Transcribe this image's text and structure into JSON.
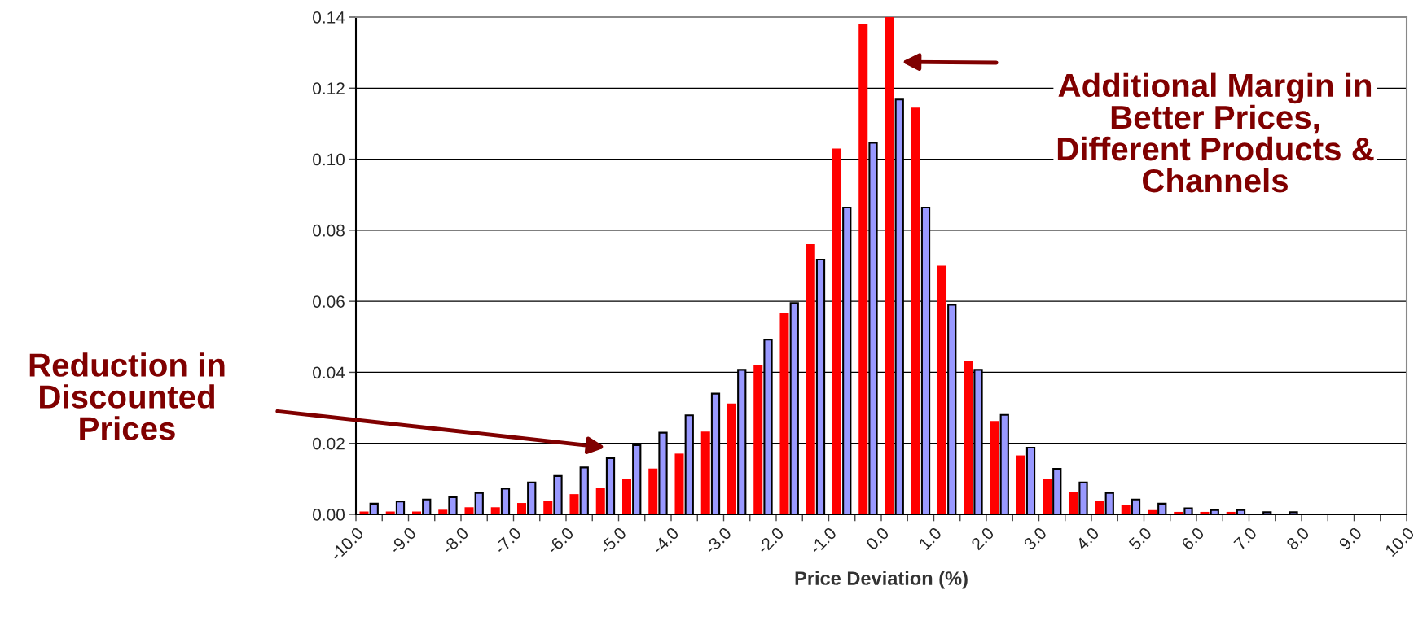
{
  "chart_data": {
    "type": "bar",
    "xlabel": "Price Deviation (%)",
    "x": [
      -9.75,
      -9.25,
      -8.75,
      -8.25,
      -7.75,
      -7.25,
      -6.75,
      -6.25,
      -5.75,
      -5.25,
      -4.75,
      -4.25,
      -3.75,
      -3.25,
      -2.75,
      -2.25,
      -1.75,
      -1.25,
      -0.75,
      -0.25,
      0.25,
      0.75,
      1.25,
      1.75,
      2.25,
      2.75,
      3.25,
      3.75,
      4.25,
      4.75,
      5.25,
      5.75,
      6.25,
      6.75,
      7.25,
      7.75
    ],
    "series": [
      {
        "color": "#ff0000",
        "values": [
          0.0008,
          0.0008,
          0.0008,
          0.0013,
          0.002,
          0.002,
          0.0032,
          0.0038,
          0.0057,
          0.0075,
          0.0099,
          0.0129,
          0.0171,
          0.0233,
          0.0312,
          0.0421,
          0.0568,
          0.0761,
          0.103,
          0.138,
          0.14,
          0.1145,
          0.07,
          0.0433,
          0.0263,
          0.0166,
          0.0099,
          0.0062,
          0.0037,
          0.0026,
          0.0012,
          0.0007,
          0.0007,
          0.0007,
          null,
          null
        ]
      },
      {
        "color": "#9999ff",
        "values": [
          0.003,
          0.0036,
          0.0042,
          0.0048,
          0.006,
          0.0072,
          0.009,
          0.0108,
          0.0132,
          0.0158,
          0.0195,
          0.023,
          0.0279,
          0.034,
          0.0407,
          0.0492,
          0.0595,
          0.0717,
          0.0864,
          0.1046,
          0.1168,
          0.0864,
          0.059,
          0.0407,
          0.028,
          0.0188,
          0.0128,
          0.009,
          0.006,
          0.0042,
          0.003,
          0.0017,
          0.0012,
          0.0012,
          0.0006,
          0.0006
        ]
      }
    ],
    "xlim": [
      -10,
      10
    ],
    "xticks": [
      {
        "value": -10,
        "label": "-10.0"
      },
      {
        "value": -9.5,
        "label": null
      },
      {
        "value": -9,
        "label": "-9.0"
      },
      {
        "value": -8.5,
        "label": null
      },
      {
        "value": -8,
        "label": "-8.0"
      },
      {
        "value": -7.5,
        "label": null
      },
      {
        "value": -7,
        "label": "-7.0"
      },
      {
        "value": -6.5,
        "label": null
      },
      {
        "value": -6,
        "label": "-6.0"
      },
      {
        "value": -5.5,
        "label": null
      },
      {
        "value": -5,
        "label": "-5.0"
      },
      {
        "value": -4.5,
        "label": null
      },
      {
        "value": -4,
        "label": "-4.0"
      },
      {
        "value": -3.5,
        "label": null
      },
      {
        "value": -3,
        "label": "-3.0"
      },
      {
        "value": -2.5,
        "label": null
      },
      {
        "value": -2,
        "label": "-2.0"
      },
      {
        "value": -1.5,
        "label": null
      },
      {
        "value": -1,
        "label": "-1.0"
      },
      {
        "value": -0.5,
        "label": null
      },
      {
        "value": 0,
        "label": "0.0"
      },
      {
        "value": 0.5,
        "label": null
      },
      {
        "value": 1,
        "label": "1.0"
      },
      {
        "value": 1.5,
        "label": null
      },
      {
        "value": 2,
        "label": "2.0"
      },
      {
        "value": 2.5,
        "label": null
      },
      {
        "value": 3,
        "label": "3.0"
      },
      {
        "value": 3.5,
        "label": null
      },
      {
        "value": 4,
        "label": "4.0"
      },
      {
        "value": 4.5,
        "label": null
      },
      {
        "value": 5,
        "label": "5.0"
      },
      {
        "value": 5.5,
        "label": null
      },
      {
        "value": 6,
        "label": "6.0"
      },
      {
        "value": 6.5,
        "label": null
      },
      {
        "value": 7,
        "label": "7.0"
      },
      {
        "value": 7.5,
        "label": null
      },
      {
        "value": 8,
        "label": "8.0"
      },
      {
        "value": 8.5,
        "label": null
      },
      {
        "value": 9,
        "label": "9.0"
      },
      {
        "value": 9.5,
        "label": null
      },
      {
        "value": 10,
        "label": "10.0"
      }
    ],
    "ylim": [
      0,
      0.14
    ],
    "yticks": [
      {
        "value": 0,
        "label": "0.00"
      },
      {
        "value": 0.02,
        "label": "0.02"
      },
      {
        "value": 0.04,
        "label": "0.04"
      },
      {
        "value": 0.06,
        "label": "0.06"
      },
      {
        "value": 0.08,
        "label": "0.08"
      },
      {
        "value": 0.1,
        "label": "0.10"
      },
      {
        "value": 0.12,
        "label": "0.12"
      },
      {
        "value": 0.14,
        "label": "0.14"
      }
    ],
    "grid": "y",
    "annotations": [
      "Reduction in\nDiscounted\nPrices",
      "Additional Margin in\nBetter Prices,\nDifferent Products &\nChannels"
    ]
  }
}
